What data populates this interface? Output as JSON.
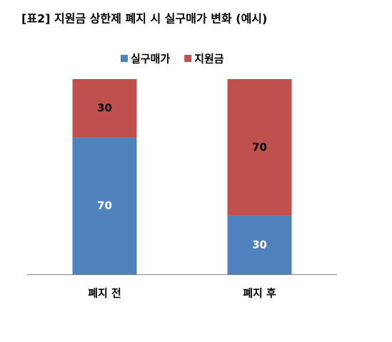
{
  "chart_data": {
    "type": "stacked-bar",
    "title": "[표2] 지원금 상한제 폐지 시 실구매가 변화 (예시)",
    "categories": [
      "폐지 전",
      "폐지 후"
    ],
    "series": [
      {
        "name": "실구매가",
        "color": "#4f81bd",
        "label_color": "#ffffff",
        "values": [
          70,
          30
        ]
      },
      {
        "name": "지원금",
        "color": "#c0504d",
        "label_color": "#000000",
        "values": [
          30,
          70
        ]
      }
    ],
    "ylim": [
      0,
      100
    ],
    "legend": "top"
  }
}
